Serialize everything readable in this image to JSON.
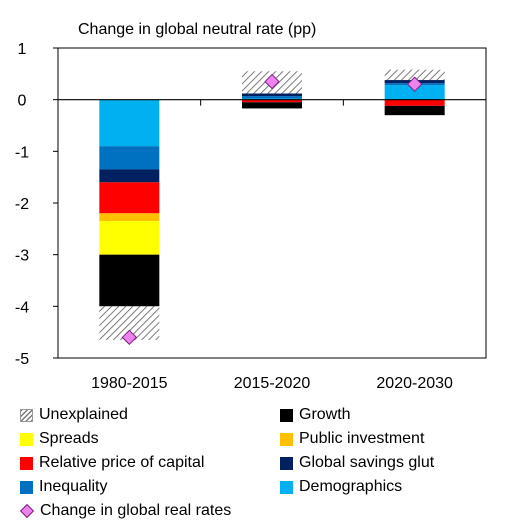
{
  "chart_data": {
    "type": "bar",
    "stacked": true,
    "title": "Change in global neutral rate (pp)",
    "xlabel": "",
    "ylabel": "",
    "ylim": [
      -5,
      1
    ],
    "yticks": [
      1,
      0,
      -1,
      -2,
      -3,
      -4,
      -5
    ],
    "categories": [
      "1980-2015",
      "2015-2020",
      "2020-2030"
    ],
    "series": [
      {
        "name": "Demographics",
        "color": "#00b0f0",
        "values": [
          -0.9,
          0.02,
          0.28
        ]
      },
      {
        "name": "Inequality",
        "color": "#0070c0",
        "values": [
          -0.45,
          0.05,
          0.04
        ]
      },
      {
        "name": "Global savings glut",
        "color": "#002060",
        "values": [
          -0.25,
          0.05,
          0.06
        ]
      },
      {
        "name": "Relative price of capital",
        "color": "#ff0000",
        "values": [
          -0.6,
          -0.05,
          -0.12
        ]
      },
      {
        "name": "Public investment",
        "color": "#ffc000",
        "values": [
          -0.15,
          0.0,
          0.0
        ]
      },
      {
        "name": "Spreads",
        "color": "#ffff00",
        "values": [
          -0.65,
          0.0,
          0.0
        ]
      },
      {
        "name": "Growth",
        "color": "#000000",
        "values": [
          -1.0,
          -0.12,
          -0.18
        ]
      },
      {
        "name": "Unexplained",
        "color": "hatched-grey",
        "values": [
          -0.65,
          0.43,
          0.2
        ]
      }
    ],
    "marker_series": {
      "name": "Change in global real rates",
      "color": "#ee82ee",
      "values": [
        -4.6,
        0.35,
        0.3
      ]
    },
    "legend": {
      "placement": "bottom",
      "entries": [
        {
          "label": "Unexplained",
          "swatch": "hatch"
        },
        {
          "label": "Growth",
          "swatch": "#000000"
        },
        {
          "label": "Spreads",
          "swatch": "#ffff00"
        },
        {
          "label": "Public investment",
          "swatch": "#ffc000"
        },
        {
          "label": "Relative price of capital",
          "swatch": "#ff0000"
        },
        {
          "label": "Global savings glut",
          "swatch": "#002060"
        },
        {
          "label": "Inequality",
          "swatch": "#0070c0"
        },
        {
          "label": "Demographics",
          "swatch": "#00b0f0"
        },
        {
          "label": "Change in global real rates",
          "swatch": "diamond"
        }
      ]
    },
    "grid": false
  }
}
